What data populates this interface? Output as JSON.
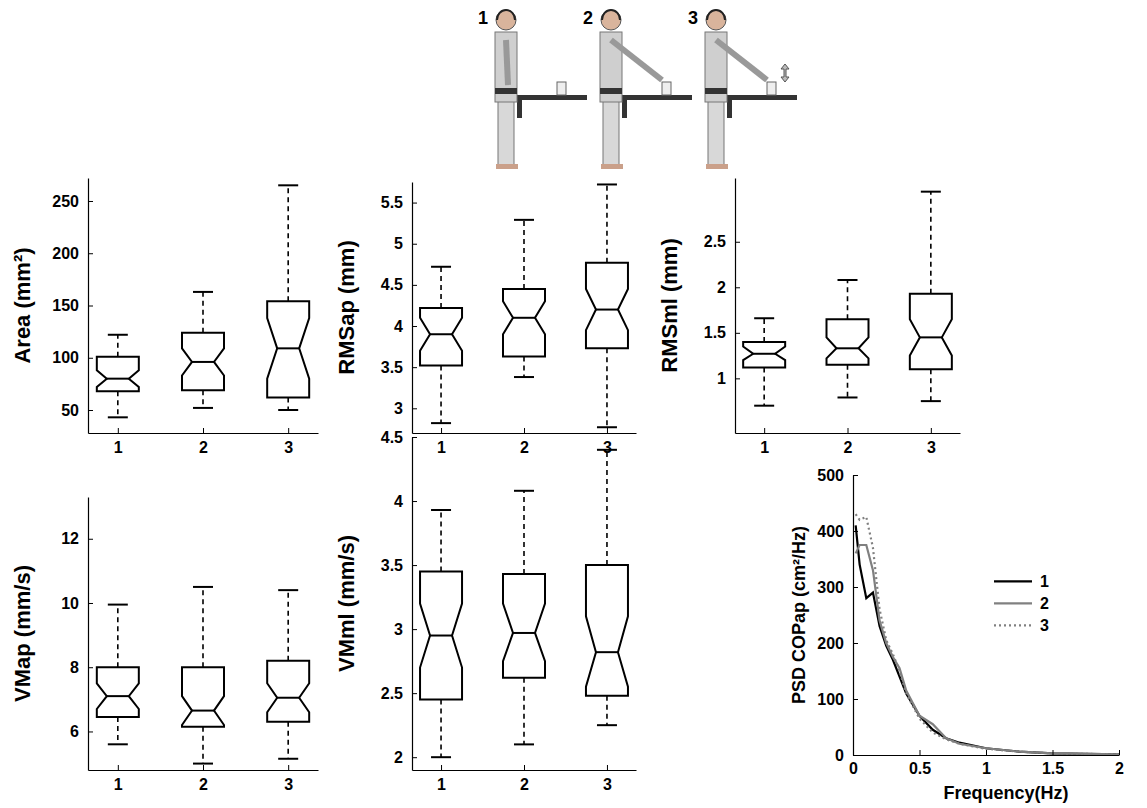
{
  "illustration": {
    "labels": [
      "1",
      "2",
      "3"
    ]
  },
  "chart_data": [
    {
      "type": "box",
      "y_label": "Area (mm²)",
      "categories": [
        "1",
        "2",
        "3"
      ],
      "ylim": [
        28,
        272
      ],
      "yticks": [
        50,
        100,
        150,
        200,
        250
      ],
      "whisker_low": [
        43,
        52,
        50
      ],
      "q1": [
        68,
        69,
        62
      ],
      "median": [
        80,
        96,
        109
      ],
      "q3": [
        101,
        124,
        154
      ],
      "whisker_high": [
        122,
        163,
        265
      ],
      "notch_low": [
        72,
        83,
        80
      ],
      "notch_high": [
        88,
        109,
        138
      ]
    },
    {
      "type": "box",
      "y_label": "RMSap (mm)",
      "categories": [
        "1",
        "2",
        "3"
      ],
      "ylim": [
        2.7,
        5.75
      ],
      "yticks": [
        3,
        3.5,
        4,
        4.5,
        5,
        5.5
      ],
      "whisker_low": [
        2.82,
        3.38,
        2.77
      ],
      "q1": [
        3.52,
        3.63,
        3.73
      ],
      "median": [
        3.9,
        4.1,
        4.2
      ],
      "q3": [
        4.22,
        4.45,
        4.77
      ],
      "whisker_high": [
        4.72,
        5.29,
        5.72
      ],
      "notch_low": [
        3.7,
        3.9,
        3.95
      ],
      "notch_high": [
        4.1,
        4.3,
        4.45
      ]
    },
    {
      "type": "box",
      "y_label": "RMSml (mm)",
      "categories": [
        "1",
        "2",
        "3"
      ],
      "ylim": [
        0.4,
        3.2
      ],
      "yticks": [
        1,
        1.5,
        2,
        2.5
      ],
      "whisker_low": [
        0.7,
        0.79,
        0.75
      ],
      "q1": [
        1.12,
        1.15,
        1.1
      ],
      "median": [
        1.27,
        1.33,
        1.45
      ],
      "q3": [
        1.4,
        1.65,
        1.93
      ],
      "whisker_high": [
        1.66,
        2.08,
        3.05
      ],
      "notch_low": [
        1.2,
        1.22,
        1.25
      ],
      "notch_high": [
        1.35,
        1.45,
        1.65
      ]
    },
    {
      "type": "box",
      "y_label": "VMap (mm/s)",
      "categories": [
        "1",
        "2",
        "3"
      ],
      "ylim": [
        4.8,
        13.3
      ],
      "yticks": [
        6,
        8,
        10,
        12
      ],
      "whisker_low": [
        5.6,
        5.0,
        5.15
      ],
      "q1": [
        6.45,
        6.15,
        6.3
      ],
      "median": [
        7.1,
        6.65,
        7.05
      ],
      "q3": [
        8.0,
        8.0,
        8.2
      ],
      "whisker_high": [
        9.95,
        10.5,
        10.4
      ],
      "notch_low": [
        6.7,
        6.2,
        6.6
      ],
      "notch_high": [
        7.5,
        7.1,
        7.5
      ]
    },
    {
      "type": "box",
      "y_label": "VMml (mm/s)",
      "categories": [
        "1",
        "2",
        "3"
      ],
      "ylim": [
        1.9,
        4.5
      ],
      "yticks": [
        2,
        2.5,
        3,
        3.5,
        4,
        4.5
      ],
      "whisker_low": [
        2.0,
        2.1,
        2.25
      ],
      "q1": [
        2.45,
        2.62,
        2.48
      ],
      "median": [
        2.95,
        2.97,
        2.82
      ],
      "q3": [
        3.45,
        3.43,
        3.5
      ],
      "whisker_high": [
        3.93,
        4.08,
        4.4
      ],
      "notch_low": [
        2.7,
        2.75,
        2.55
      ],
      "notch_high": [
        3.2,
        3.2,
        3.1
      ]
    },
    {
      "type": "line",
      "x_label": "Frequency(Hz)",
      "y_label": "PSD COPap (cm²/Hz)",
      "x": [
        0.02,
        0.05,
        0.1,
        0.15,
        0.2,
        0.25,
        0.3,
        0.35,
        0.4,
        0.5,
        0.6,
        0.7,
        0.8,
        1,
        1.25,
        1.5,
        2
      ],
      "xlim": [
        0,
        2
      ],
      "xticks": [
        0,
        0.5,
        1,
        1.5,
        2
      ],
      "ylim": [
        0,
        500
      ],
      "yticks": [
        0,
        100,
        200,
        300,
        400,
        500
      ],
      "legend": "right",
      "series": [
        {
          "name": "1",
          "color": "#000000",
          "line_style": "solid",
          "values": [
            410,
            340,
            280,
            290,
            230,
            195,
            170,
            140,
            110,
            70,
            45,
            30,
            22,
            12,
            6,
            3,
            1
          ]
        },
        {
          "name": "2",
          "color": "#808080",
          "line_style": "solid",
          "values": [
            360,
            375,
            375,
            330,
            240,
            200,
            175,
            155,
            115,
            70,
            55,
            30,
            20,
            12,
            6,
            3,
            1
          ]
        },
        {
          "name": "3",
          "color": "#808080",
          "line_style": "dotted",
          "values": [
            430,
            420,
            425,
            370,
            260,
            205,
            180,
            150,
            110,
            65,
            40,
            28,
            20,
            11,
            6,
            3,
            1
          ]
        }
      ]
    }
  ]
}
